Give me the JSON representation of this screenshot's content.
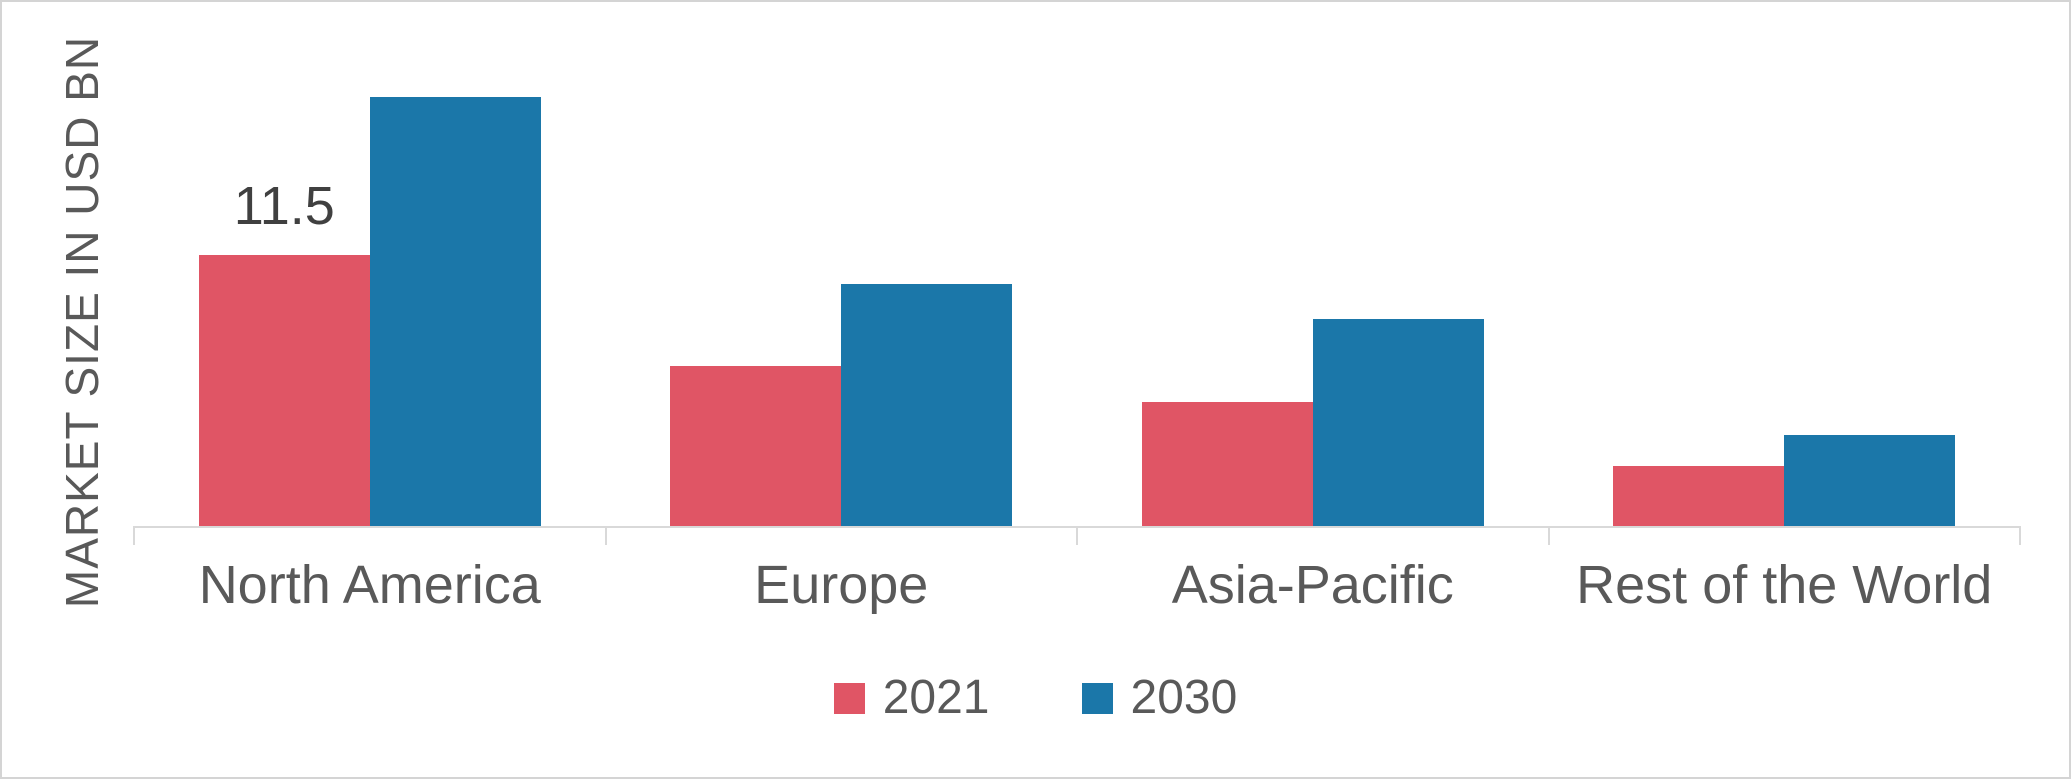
{
  "page": {
    "background": "#ffffff",
    "border_color": "#d4d4d4"
  },
  "chart_data": {
    "type": "bar",
    "title": "",
    "xlabel": "",
    "ylabel": "MARKET SIZE IN USD BN",
    "categories": [
      "North America",
      "Europe",
      "Asia-Pacific",
      "Rest of the World"
    ],
    "series": [
      {
        "name": "2021",
        "color": "#e05565",
        "values": [
          11.5,
          6.8,
          5.3,
          2.6
        ],
        "data_labels": [
          "11.5",
          null,
          null,
          null
        ]
      },
      {
        "name": "2030",
        "color": "#1b77a9",
        "values": [
          18.2,
          10.3,
          8.8,
          3.9
        ],
        "data_labels": [
          null,
          null,
          null,
          null
        ]
      }
    ],
    "ylim": [
      0,
      19
    ],
    "grid": false,
    "legend_position": "bottom",
    "axis_color": "#d9d9d9",
    "text_color": "#595959",
    "data_label_color": "#404040"
  }
}
